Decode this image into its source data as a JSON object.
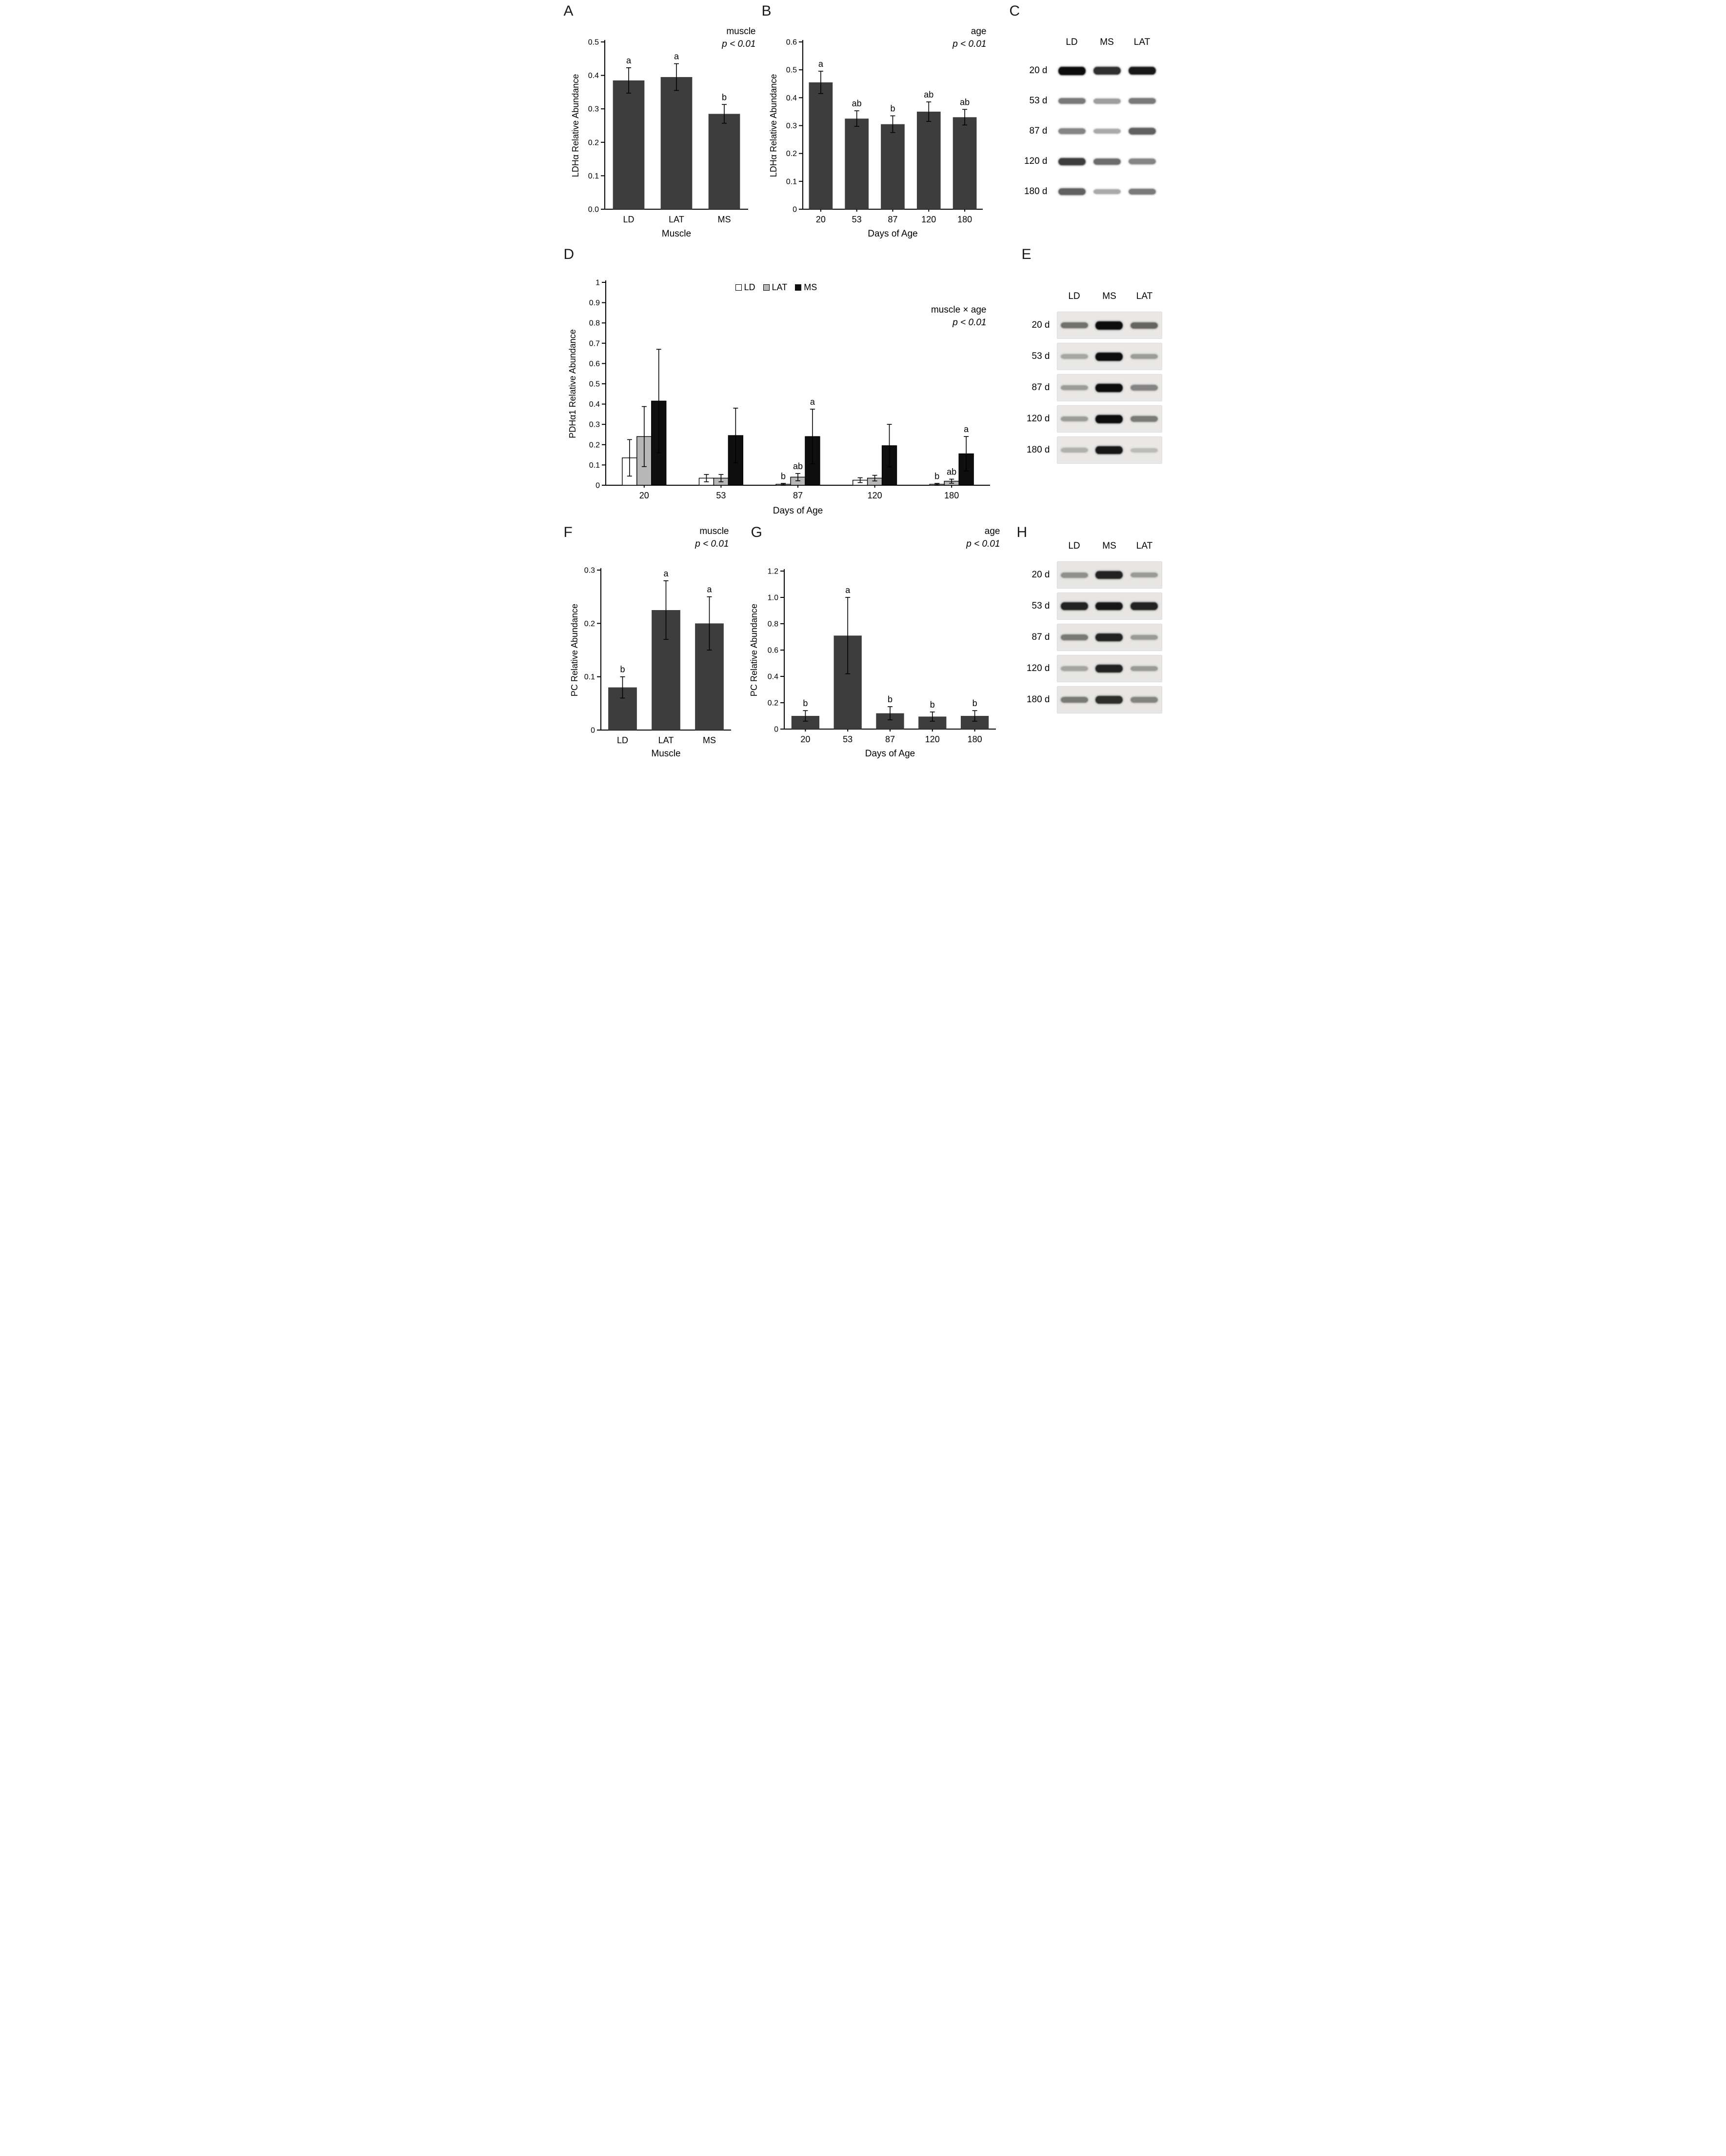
{
  "panels": {
    "A": {
      "letter": "A",
      "stat": "muscle",
      "p": "p < 0.01"
    },
    "B": {
      "letter": "B",
      "stat": "age",
      "p": "p < 0.01"
    },
    "C": {
      "letter": "C"
    },
    "D": {
      "letter": "D",
      "stat": "muscle × age",
      "p": "p < 0.01"
    },
    "E": {
      "letter": "E"
    },
    "F": {
      "letter": "F",
      "stat": "muscle",
      "p": "p < 0.01"
    },
    "G": {
      "letter": "G",
      "stat": "age",
      "p": "p < 0.01"
    },
    "H": {
      "letter": "H"
    }
  },
  "chart_data": [
    {
      "id": "chart-a",
      "panel": "A",
      "type": "bar",
      "title": "",
      "annotation": "muscle, p < 0.01",
      "categories": [
        "LD",
        "LAT",
        "MS"
      ],
      "values": [
        0.385,
        0.395,
        0.285
      ],
      "errors": [
        0.038,
        0.04,
        0.028
      ],
      "letters": [
        "a",
        "a",
        "b"
      ],
      "xlabel": "Muscle",
      "ylabel": "LDHα Relative Abundance",
      "ylim": [
        0,
        0.5
      ],
      "ytick_values": [
        0,
        0.1,
        0.2,
        0.3,
        0.4,
        0.5
      ],
      "ytick_labels": [
        "0.0",
        "0.1",
        "0.2",
        "0.3",
        "0.4",
        "0.5"
      ],
      "bar_color": "#3d3d3d"
    },
    {
      "id": "chart-b",
      "panel": "B",
      "type": "bar",
      "title": "",
      "annotation": "age, p < 0.01",
      "categories": [
        "20",
        "53",
        "87",
        "120",
        "180"
      ],
      "values": [
        0.455,
        0.325,
        0.305,
        0.35,
        0.33
      ],
      "errors": [
        0.04,
        0.028,
        0.03,
        0.035,
        0.028
      ],
      "letters": [
        "a",
        "ab",
        "b",
        "ab",
        "ab"
      ],
      "xlabel": "Days of Age",
      "ylabel": "LDHα Relative Abundance",
      "ylim": [
        0,
        0.6
      ],
      "ytick_values": [
        0,
        0.1,
        0.2,
        0.3,
        0.4,
        0.5,
        0.6
      ],
      "ytick_labels": [
        "0",
        "0.1",
        "0.2",
        "0.3",
        "0.4",
        "0.5",
        "0.6"
      ],
      "bar_color": "#3d3d3d"
    },
    {
      "id": "chart-d",
      "panel": "D",
      "type": "grouped-bar",
      "title": "",
      "annotation": "muscle × age, p < 0.01",
      "categories": [
        "20",
        "53",
        "87",
        "120",
        "180"
      ],
      "series": [
        {
          "name": "LD",
          "color": "#ffffff",
          "values": [
            0.135,
            0.035,
            0.005,
            0.025,
            0.005
          ],
          "errors": [
            0.09,
            0.018,
            0.004,
            0.012,
            0.004
          ],
          "letters": [
            "",
            "",
            "b",
            "",
            "b"
          ]
        },
        {
          "name": "LAT",
          "color": "#b7b7b7",
          "values": [
            0.24,
            0.035,
            0.04,
            0.035,
            0.02
          ],
          "errors": [
            0.148,
            0.018,
            0.018,
            0.014,
            0.01
          ],
          "letters": [
            "",
            "",
            "ab",
            "",
            "ab"
          ]
        },
        {
          "name": "MS",
          "color": "#0f0f0f",
          "values": [
            0.415,
            0.245,
            0.24,
            0.195,
            0.155
          ],
          "errors": [
            0.255,
            0.135,
            0.135,
            0.105,
            0.085
          ],
          "letters": [
            "",
            "",
            "a",
            "",
            "a"
          ]
        }
      ],
      "xlabel": "Days of Age",
      "ylabel": "PDHα1 Relative Abundance",
      "ylim": [
        0,
        1
      ],
      "ytick_values": [
        0,
        0.1,
        0.2,
        0.3,
        0.4,
        0.5,
        0.6,
        0.7,
        0.8,
        0.9,
        1
      ],
      "ytick_labels": [
        "0",
        "0.1",
        "0.2",
        "0.3",
        "0.4",
        "0.5",
        "0.6",
        "0.7",
        "0.8",
        "0.9",
        "1"
      ]
    },
    {
      "id": "chart-f",
      "panel": "F",
      "type": "bar",
      "title": "",
      "annotation": "muscle, p < 0.01",
      "categories": [
        "LD",
        "LAT",
        "MS"
      ],
      "values": [
        0.08,
        0.225,
        0.2
      ],
      "errors": [
        0.02,
        0.055,
        0.05
      ],
      "letters": [
        "b",
        "a",
        "a"
      ],
      "xlabel": "Muscle",
      "ylabel": "PC Relative Abundance",
      "ylim": [
        0,
        0.3
      ],
      "ytick_values": [
        0,
        0.1,
        0.2,
        0.3
      ],
      "ytick_labels": [
        "0",
        "0.1",
        "0.2",
        "0.3"
      ],
      "bar_color": "#3d3d3d"
    },
    {
      "id": "chart-g",
      "panel": "G",
      "type": "bar",
      "title": "",
      "annotation": "age, p < 0.01",
      "categories": [
        "20",
        "53",
        "87",
        "120",
        "180"
      ],
      "values": [
        0.1,
        0.71,
        0.12,
        0.095,
        0.1
      ],
      "errors": [
        0.04,
        0.29,
        0.05,
        0.035,
        0.04
      ],
      "letters": [
        "b",
        "a",
        "b",
        "b",
        "b"
      ],
      "xlabel": "Days of Age",
      "ylabel": "PC Relative Abundance",
      "ylim": [
        0,
        1.2
      ],
      "ytick_values": [
        0,
        0.2,
        0.4,
        0.6,
        0.8,
        1.0,
        1.2
      ],
      "ytick_labels": [
        "0",
        "0.2",
        "0.4",
        "0.6",
        "0.8",
        "1.0",
        "1.2"
      ],
      "bar_color": "#3d3d3d"
    }
  ],
  "blots": [
    {
      "id": "blot-c",
      "panel": "C",
      "columns": [
        "LD",
        "MS",
        "LAT"
      ],
      "strip_bg": "#ffffff",
      "rows": [
        {
          "label": "20 d",
          "bands": [
            1.0,
            0.85,
            0.95
          ]
        },
        {
          "label": "53 d",
          "bands": [
            0.55,
            0.4,
            0.55
          ]
        },
        {
          "label": "87 d",
          "bands": [
            0.5,
            0.35,
            0.65
          ]
        },
        {
          "label": "120 d",
          "bands": [
            0.8,
            0.6,
            0.5
          ]
        },
        {
          "label": "180 d",
          "bands": [
            0.65,
            0.35,
            0.55
          ]
        }
      ]
    },
    {
      "id": "blot-e",
      "panel": "E",
      "columns": [
        "LD",
        "MS",
        "LAT"
      ],
      "strip_bg": "#e9e8e6",
      "rows": [
        {
          "label": "20 d",
          "bands": [
            0.55,
            1.0,
            0.6
          ]
        },
        {
          "label": "53 d",
          "bands": [
            0.3,
            1.0,
            0.35
          ]
        },
        {
          "label": "87 d",
          "bands": [
            0.35,
            1.0,
            0.45
          ]
        },
        {
          "label": "120 d",
          "bands": [
            0.35,
            1.0,
            0.5
          ]
        },
        {
          "label": "180 d",
          "bands": [
            0.25,
            0.95,
            0.2
          ]
        }
      ]
    },
    {
      "id": "blot-h",
      "panel": "H",
      "columns": [
        "LD",
        "MS",
        "LAT"
      ],
      "strip_bg": "#e7e6e4",
      "rows": [
        {
          "label": "20 d",
          "bands": [
            0.4,
            0.9,
            0.35
          ]
        },
        {
          "label": "53 d",
          "bands": [
            0.9,
            0.95,
            0.9
          ]
        },
        {
          "label": "87 d",
          "bands": [
            0.5,
            0.9,
            0.35
          ]
        },
        {
          "label": "120 d",
          "bands": [
            0.3,
            0.9,
            0.35
          ]
        },
        {
          "label": "180 d",
          "bands": [
            0.5,
            0.85,
            0.45
          ]
        }
      ]
    }
  ],
  "legend": {
    "items": [
      "LD",
      "LAT",
      "MS"
    ],
    "colors": [
      "#ffffff",
      "#b7b7b7",
      "#0f0f0f"
    ]
  }
}
